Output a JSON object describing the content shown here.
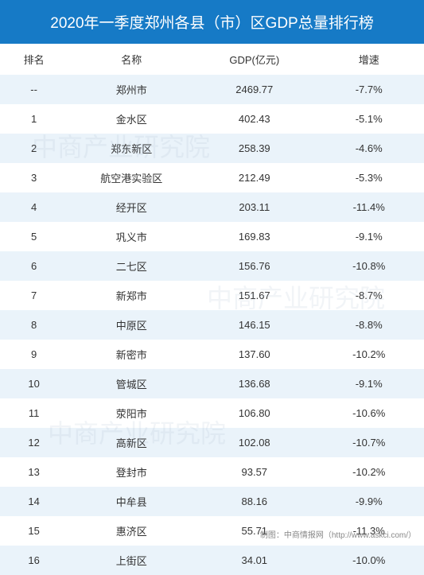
{
  "title": "2020年一季度郑州各县（市）区GDP总量排行榜",
  "columns": {
    "rank": "排名",
    "name": "名称",
    "gdp": "GDP(亿元)",
    "growth": "增速"
  },
  "rows": [
    {
      "rank": "--",
      "name": "郑州市",
      "gdp": "2469.77",
      "growth": "-7.7%"
    },
    {
      "rank": "1",
      "name": "金水区",
      "gdp": "402.43",
      "growth": "-5.1%"
    },
    {
      "rank": "2",
      "name": "郑东新区",
      "gdp": "258.39",
      "growth": "-4.6%"
    },
    {
      "rank": "3",
      "name": "航空港实验区",
      "gdp": "212.49",
      "growth": "-5.3%"
    },
    {
      "rank": "4",
      "name": "经开区",
      "gdp": "203.11",
      "growth": "-11.4%"
    },
    {
      "rank": "5",
      "name": "巩义市",
      "gdp": "169.83",
      "growth": "-9.1%"
    },
    {
      "rank": "6",
      "name": "二七区",
      "gdp": "156.76",
      "growth": "-10.8%"
    },
    {
      "rank": "7",
      "name": "新郑市",
      "gdp": "151.67",
      "growth": "-8.7%"
    },
    {
      "rank": "8",
      "name": "中原区",
      "gdp": "146.15",
      "growth": "-8.8%"
    },
    {
      "rank": "9",
      "name": "新密市",
      "gdp": "137.60",
      "growth": "-10.2%"
    },
    {
      "rank": "10",
      "name": "管城区",
      "gdp": "136.68",
      "growth": "-9.1%"
    },
    {
      "rank": "11",
      "name": "荥阳市",
      "gdp": "106.80",
      "growth": "-10.6%"
    },
    {
      "rank": "12",
      "name": "高新区",
      "gdp": "102.08",
      "growth": "-10.7%"
    },
    {
      "rank": "13",
      "name": "登封市",
      "gdp": "93.57",
      "growth": "-10.2%"
    },
    {
      "rank": "14",
      "name": "中牟县",
      "gdp": "88.16",
      "growth": "-9.9%"
    },
    {
      "rank": "15",
      "name": "惠济区",
      "gdp": "55.71",
      "growth": "-11.3%"
    },
    {
      "rank": "16",
      "name": "上街区",
      "gdp": "34.01",
      "growth": "-10.0%"
    }
  ],
  "footer": "制图：中商情报网（http://www.askci.com/）",
  "watermark": "中商产业研究院",
  "styling": {
    "title_bg": "#167ac6",
    "title_color": "#ffffff",
    "title_fontsize": 19,
    "header_bg": "#ffffff",
    "odd_row_bg": "#eaf3fa",
    "even_row_bg": "#ffffff",
    "text_color": "#333333",
    "cell_fontsize": 13,
    "footer_color": "#888888",
    "footer_fontsize": 10,
    "watermark_color": "rgba(160,180,200,0.15)",
    "col_widths": {
      "rank": "16%",
      "name": "30%",
      "gdp": "28%",
      "growth": "26%"
    }
  }
}
